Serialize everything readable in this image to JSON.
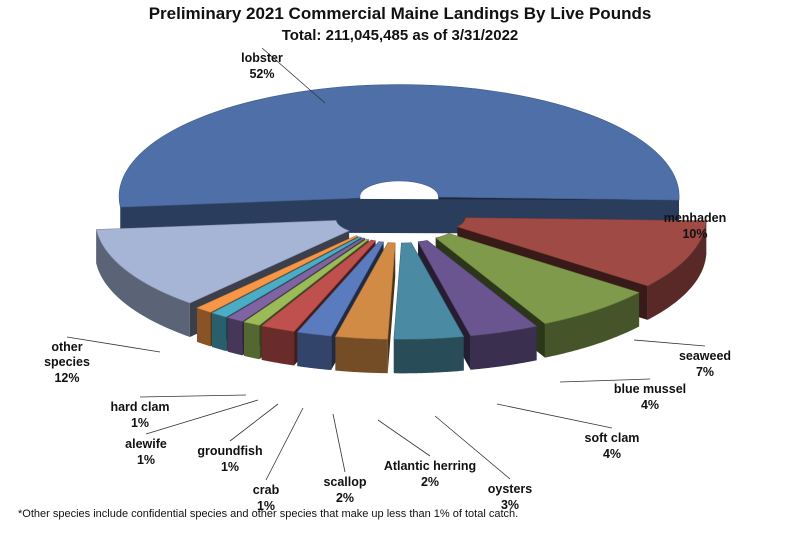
{
  "chart_data": {
    "type": "pie",
    "title": "Preliminary 2021 Commercial Maine Landings By Live Pounds",
    "subtitle": "Total: 211,045,485  as of 3/31/2022",
    "footnote": "*Other species include confidential species and other species that make up less than 1% of total catch.",
    "slices": [
      {
        "name": "lobster",
        "label": "52%",
        "value": 52,
        "color": "#4f6fa8"
      },
      {
        "name": "menhaden",
        "label": "10%",
        "value": 10,
        "color": "#a04a45"
      },
      {
        "name": "seaweed",
        "label": "7%",
        "value": 7,
        "color": "#7f9a4a"
      },
      {
        "name": "blue mussel",
        "label": "4%",
        "value": 4,
        "color": "#6a5590"
      },
      {
        "name": "soft clam",
        "label": "4%",
        "value": 4,
        "color": "#4a8aa2"
      },
      {
        "name": "oysters",
        "label": "3%",
        "value": 3,
        "color": "#d28b45"
      },
      {
        "name": "Atlantic herring",
        "label": "2%",
        "value": 2,
        "color": "#5b7bbf"
      },
      {
        "name": "scallop",
        "label": "2%",
        "value": 2,
        "color": "#c0504d"
      },
      {
        "name": "crab",
        "label": "1%",
        "value": 1,
        "color": "#9bbb59"
      },
      {
        "name": "groundfish",
        "label": "1%",
        "value": 1,
        "color": "#8064a2"
      },
      {
        "name": "alewife",
        "label": "1%",
        "value": 1,
        "color": "#4bacc6"
      },
      {
        "name": "hard clam",
        "label": "1%",
        "value": 1,
        "color": "#f79646"
      },
      {
        "name": "other species",
        "label": "12%",
        "value": 12,
        "color": "#a6b4d6"
      }
    ]
  }
}
